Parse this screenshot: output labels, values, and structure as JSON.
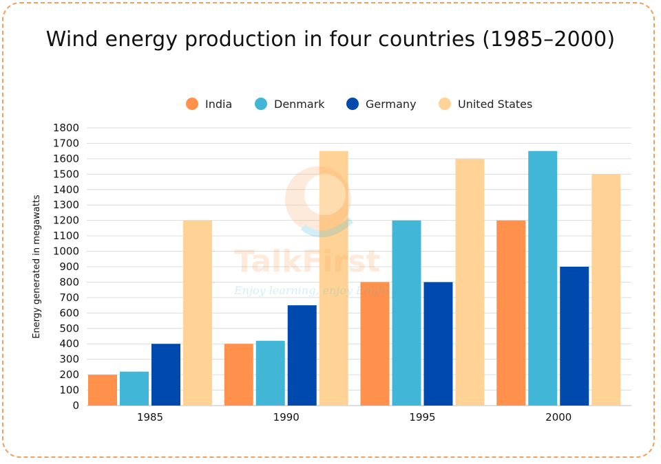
{
  "chart_data": {
    "type": "bar",
    "title": "Wind energy production in four countries (1985–2000)",
    "ylabel": "Energy generated in megawatts",
    "xlabel": "",
    "categories": [
      "1985",
      "1990",
      "1995",
      "2000"
    ],
    "ylim": [
      0,
      1800
    ],
    "yticks": [
      "0",
      "100",
      "200",
      "300",
      "400",
      "500",
      "600",
      "700",
      "800",
      "900",
      "1000",
      "1100",
      "1200",
      "1300",
      "1400",
      "1500",
      "1600",
      "1700",
      "1800"
    ],
    "grid": true,
    "legend_position": "top",
    "series": [
      {
        "name": "India",
        "color": "#ff914d",
        "values": [
          200,
          400,
          800,
          1200
        ]
      },
      {
        "name": "Denmark",
        "color": "#41b6d6",
        "values": [
          220,
          420,
          1200,
          1650
        ]
      },
      {
        "name": "Germany",
        "color": "#004aad",
        "values": [
          400,
          650,
          800,
          900
        ]
      },
      {
        "name": "United States",
        "color": "#ffd396",
        "values": [
          1200,
          1650,
          1600,
          1500
        ]
      }
    ]
  },
  "watermark": {
    "brand": "TalkFirst",
    "tagline": "Enjoy learning, enjoy English"
  }
}
